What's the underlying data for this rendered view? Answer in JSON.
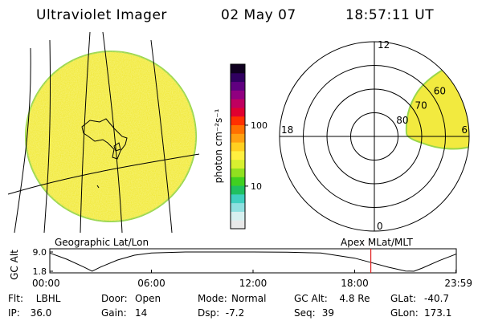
{
  "header": {
    "instrument": "Ultraviolet Imager",
    "date": "02 May 07",
    "time": "18:57:11 UT"
  },
  "colors": {
    "disk_fill": "#f2ea3f",
    "disk_rim": "#9ad64a",
    "line": "#000000",
    "cursor": "#e02020"
  },
  "colorbar": {
    "unit_label": "photon cm⁻²s⁻¹",
    "tick_labels": [
      "100",
      "10"
    ],
    "tick_values": [
      100,
      10
    ],
    "range": [
      2,
      1000
    ],
    "scale": "log",
    "colors": [
      "#e8e8e8",
      "#d7f0f0",
      "#8fe0e0",
      "#40d0c0",
      "#20c060",
      "#40d020",
      "#90e020",
      "#d8f030",
      "#fff040",
      "#ffd020",
      "#ffa010",
      "#ff7000",
      "#ff3000",
      "#e00030",
      "#c00060",
      "#900080",
      "#600080",
      "#300060",
      "#100020"
    ]
  },
  "polar": {
    "mlt_labels": {
      "top": "12",
      "left": "18",
      "right": "6",
      "bottom": "0"
    },
    "lat_labels": [
      "60",
      "70",
      "80"
    ],
    "lat_values": [
      60,
      70,
      80
    ]
  },
  "timeline": {
    "left_label": "Geographic Lat/Lon",
    "right_label": "Apex MLat/MLT",
    "axis_label": "GC Alt",
    "y_ticks": [
      "9.0",
      "1.8"
    ],
    "x_ticks": [
      "00:00",
      "06:00",
      "12:00",
      "18:00",
      "23:59"
    ],
    "cursor_label": "18:57"
  },
  "chart_data": {
    "type": "line",
    "title": "",
    "xlabel": "",
    "ylabel": "GC Alt",
    "ylim": [
      1.8,
      9.0
    ],
    "x_hours": [
      0,
      1,
      2,
      2.5,
      3,
      4,
      5,
      6,
      8,
      10,
      12,
      14,
      16,
      18,
      19,
      20,
      21,
      21.5,
      22,
      23,
      23.98
    ],
    "y_alt": [
      8.6,
      6.3,
      3.4,
      1.8,
      3.4,
      6.0,
      7.8,
      8.6,
      9.0,
      9.0,
      9.0,
      8.9,
      8.6,
      6.7,
      5.0,
      3.3,
      1.9,
      1.8,
      3.0,
      5.8,
      8.2
    ],
    "cursor_hour": 18.953
  },
  "footer": [
    [
      {
        "k": "Flt:",
        "v": "LBHL"
      },
      {
        "k": "Door:",
        "v": "Open"
      },
      {
        "k": "Mode:",
        "v": "Normal"
      },
      {
        "k": "GC Alt:",
        "v": "4.8 Re"
      },
      {
        "k": "GLat:",
        "v": "-40.7"
      }
    ],
    [
      {
        "k": "IP:",
        "v": "36.0"
      },
      {
        "k": "Gain:",
        "v": "14"
      },
      {
        "k": "Dsp:",
        "v": "-7.2"
      },
      {
        "k": "Seq:",
        "v": "39"
      },
      {
        "k": "GLon:",
        "v": "173.1"
      }
    ]
  ]
}
